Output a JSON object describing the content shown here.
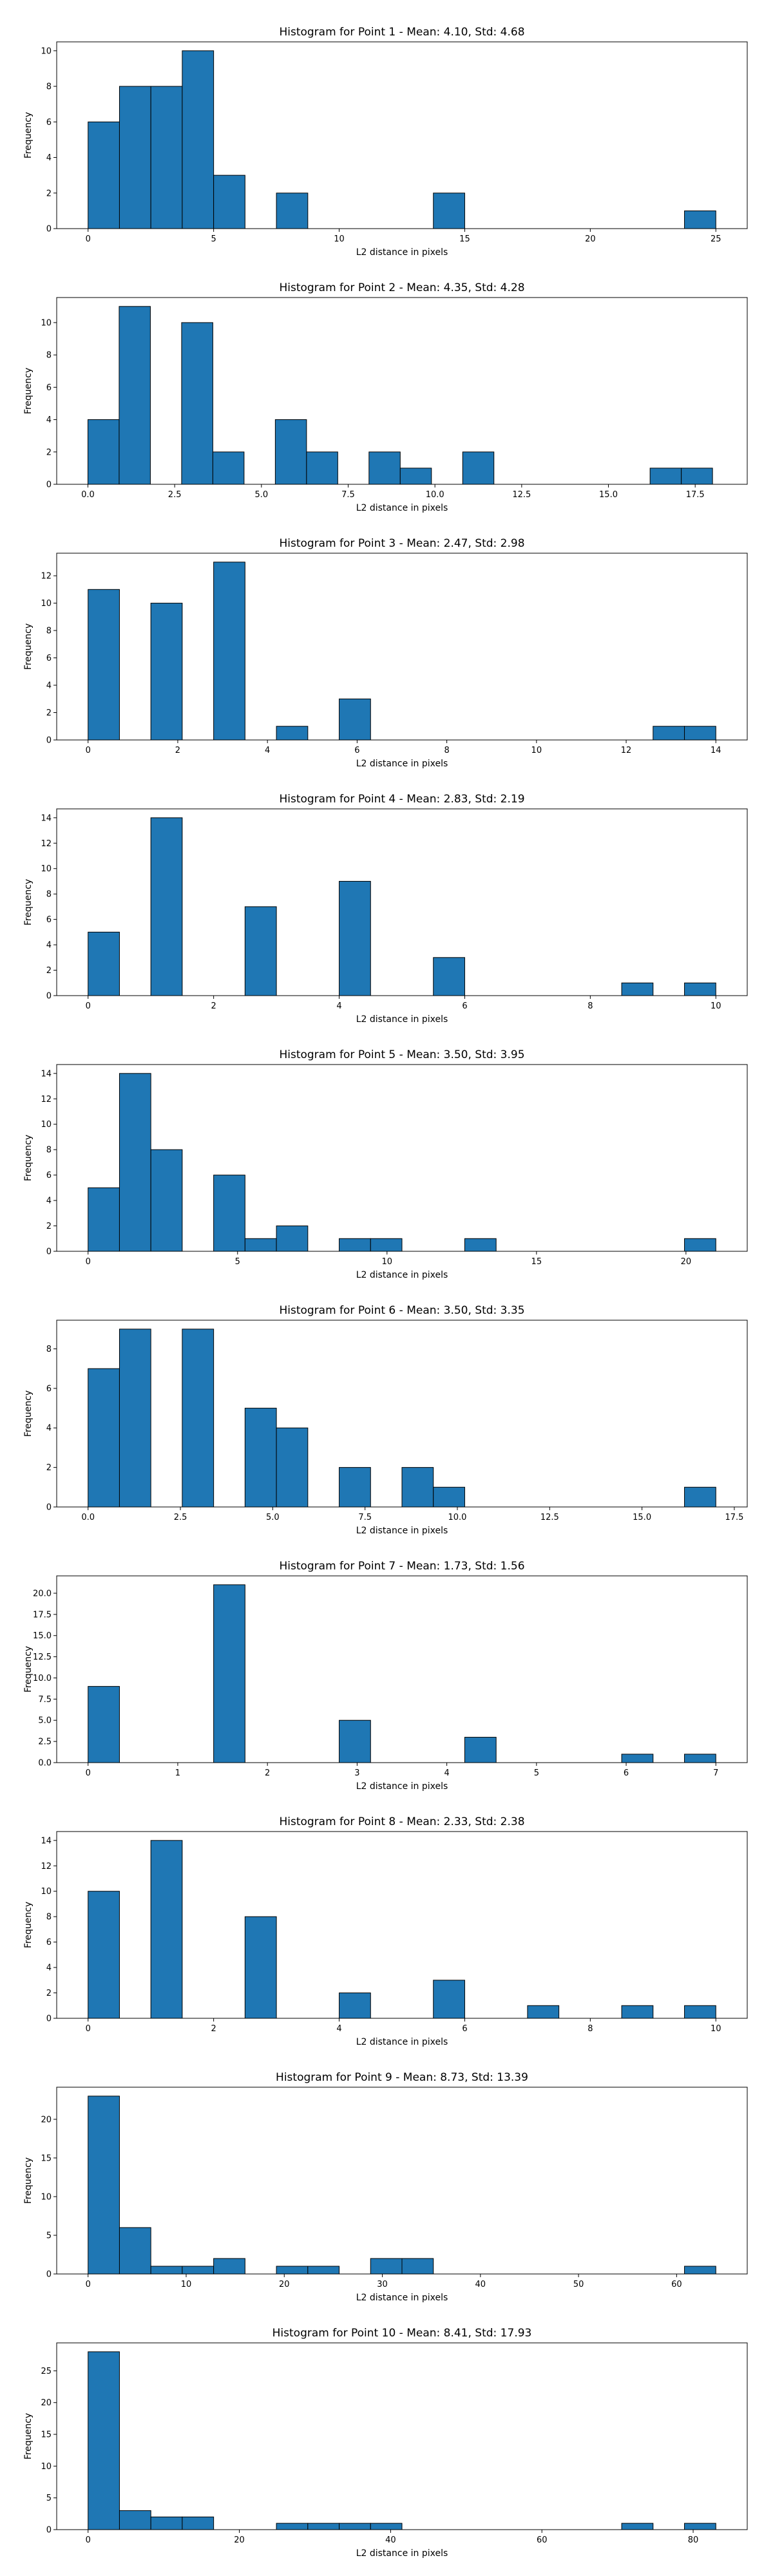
{
  "chart_data": [
    {
      "type": "bar",
      "title": "Histogram for Point 1 - Mean: 4.10, Std: 4.68",
      "xlabel": "L2 distance in pixels",
      "ylabel": "Frequency",
      "xlim": [
        -1.25,
        26.25
      ],
      "ylim": [
        0,
        10.5
      ],
      "xticks": [
        0,
        5,
        10,
        15,
        20,
        25
      ],
      "xtick_labels": [
        "0",
        "5",
        "10",
        "15",
        "20",
        "25"
      ],
      "yticks": [
        0,
        2,
        4,
        6,
        8,
        10
      ],
      "ytick_labels": [
        "0",
        "2",
        "4",
        "6",
        "8",
        "10"
      ],
      "bin_edges": [
        0.0,
        1.25,
        2.5,
        3.75,
        5.0,
        6.25,
        7.5,
        8.75,
        10.0,
        11.25,
        12.5,
        13.75,
        15.0,
        16.25,
        17.5,
        18.75,
        20.0,
        21.25,
        22.5,
        23.75,
        25.0
      ],
      "values": [
        6,
        8,
        8,
        10,
        3,
        0,
        2,
        0,
        0,
        0,
        0,
        2,
        0,
        0,
        0,
        0,
        0,
        0,
        0,
        1
      ]
    },
    {
      "type": "bar",
      "title": "Histogram for Point 2 - Mean: 4.35, Std: 4.28",
      "xlabel": "L2 distance in pixels",
      "ylabel": "Frequency",
      "xlim": [
        -0.9,
        19.0
      ],
      "ylim": [
        0,
        11.55
      ],
      "xticks": [
        0.0,
        2.5,
        5.0,
        7.5,
        10.0,
        12.5,
        15.0,
        17.5
      ],
      "xtick_labels": [
        "0.0",
        "2.5",
        "5.0",
        "7.5",
        "10.0",
        "12.5",
        "15.0",
        "17.5"
      ],
      "yticks": [
        0,
        2,
        4,
        6,
        8,
        10
      ],
      "ytick_labels": [
        "0",
        "2",
        "4",
        "6",
        "8",
        "10"
      ],
      "bin_edges": [
        0.0,
        0.9,
        1.8,
        2.7,
        3.6,
        4.5,
        5.4,
        6.3,
        7.2,
        8.1,
        9.0,
        9.9,
        10.8,
        11.7,
        12.6,
        13.5,
        14.4,
        15.3,
        16.2,
        17.1,
        18.0
      ],
      "values": [
        4,
        11,
        0,
        10,
        2,
        0,
        4,
        2,
        0,
        2,
        1,
        0,
        2,
        0,
        0,
        0,
        0,
        0,
        1,
        1
      ]
    },
    {
      "type": "bar",
      "title": "Histogram for Point 3 - Mean: 2.47, Std: 2.98",
      "xlabel": "L2 distance in pixels",
      "ylabel": "Frequency",
      "xlim": [
        -0.7,
        14.7
      ],
      "ylim": [
        0,
        13.65
      ],
      "xticks": [
        0,
        2,
        4,
        6,
        8,
        10,
        12,
        14
      ],
      "xtick_labels": [
        "0",
        "2",
        "4",
        "6",
        "8",
        "10",
        "12",
        "14"
      ],
      "yticks": [
        0,
        2,
        4,
        6,
        8,
        10,
        12
      ],
      "ytick_labels": [
        "0",
        "2",
        "4",
        "6",
        "8",
        "10",
        "12"
      ],
      "bin_edges": [
        0.0,
        0.7,
        1.4,
        2.1,
        2.8,
        3.5,
        4.2,
        4.9,
        5.6,
        6.3,
        7.0,
        7.7,
        8.4,
        9.1,
        9.8,
        10.5,
        11.2,
        11.9,
        12.6,
        13.3,
        14.0
      ],
      "values": [
        11,
        0,
        10,
        0,
        13,
        0,
        1,
        0,
        3,
        0,
        0,
        0,
        0,
        0,
        0,
        0,
        0,
        0,
        1,
        1
      ]
    },
    {
      "type": "bar",
      "title": "Histogram for Point 4 - Mean: 2.83, Std: 2.19",
      "xlabel": "L2 distance in pixels",
      "ylabel": "Frequency",
      "xlim": [
        -0.5,
        10.5
      ],
      "ylim": [
        0,
        14.7
      ],
      "xticks": [
        0,
        2,
        4,
        6,
        8,
        10
      ],
      "xtick_labels": [
        "0",
        "2",
        "4",
        "6",
        "8",
        "10"
      ],
      "yticks": [
        0,
        2,
        4,
        6,
        8,
        10,
        12,
        14
      ],
      "ytick_labels": [
        "0",
        "2",
        "4",
        "6",
        "8",
        "10",
        "12",
        "14"
      ],
      "bin_edges": [
        0.0,
        0.5,
        1.0,
        1.5,
        2.0,
        2.5,
        3.0,
        3.5,
        4.0,
        4.5,
        5.0,
        5.5,
        6.0,
        6.5,
        7.0,
        7.5,
        8.0,
        8.5,
        9.0,
        9.5,
        10.0
      ],
      "values": [
        5,
        0,
        14,
        0,
        0,
        7,
        0,
        0,
        9,
        0,
        0,
        3,
        0,
        0,
        0,
        0,
        0,
        1,
        0,
        1
      ]
    },
    {
      "type": "bar",
      "title": "Histogram for Point 5 - Mean: 3.50, Std: 3.95",
      "xlabel": "L2 distance in pixels",
      "ylabel": "Frequency",
      "xlim": [
        -1.05,
        22.05
      ],
      "ylim": [
        0,
        14.7
      ],
      "xticks": [
        0,
        5,
        10,
        15,
        20
      ],
      "xtick_labels": [
        "0",
        "5",
        "10",
        "15",
        "20"
      ],
      "yticks": [
        0,
        2,
        4,
        6,
        8,
        10,
        12,
        14
      ],
      "ytick_labels": [
        "0",
        "2",
        "4",
        "6",
        "8",
        "10",
        "12",
        "14"
      ],
      "bin_edges": [
        0.0,
        1.05,
        2.1,
        3.15,
        4.2,
        5.25,
        6.3,
        7.35,
        8.4,
        9.45,
        10.5,
        11.55,
        12.6,
        13.65,
        14.7,
        15.75,
        16.8,
        17.85,
        18.9,
        19.95,
        21.0
      ],
      "values": [
        5,
        14,
        8,
        0,
        6,
        1,
        2,
        0,
        1,
        1,
        0,
        0,
        1,
        0,
        0,
        0,
        0,
        0,
        0,
        1
      ]
    },
    {
      "type": "bar",
      "title": "Histogram for Point 6 - Mean: 3.50, Std: 3.35",
      "xlabel": "L2 distance in pixels",
      "ylabel": "Frequency",
      "xlim": [
        -0.85,
        17.85
      ],
      "ylim": [
        0,
        9.45
      ],
      "xticks": [
        0.0,
        2.5,
        5.0,
        7.5,
        10.0,
        12.5,
        15.0,
        17.5
      ],
      "xtick_labels": [
        "0.0",
        "2.5",
        "5.0",
        "7.5",
        "10.0",
        "12.5",
        "15.0",
        "17.5"
      ],
      "yticks": [
        0,
        2,
        4,
        6,
        8
      ],
      "ytick_labels": [
        "0",
        "2",
        "4",
        "6",
        "8"
      ],
      "bin_edges": [
        0.0,
        0.85,
        1.7,
        2.55,
        3.4,
        4.25,
        5.1,
        5.95,
        6.8,
        7.65,
        8.5,
        9.35,
        10.2,
        11.05,
        11.9,
        12.75,
        13.6,
        14.45,
        15.3,
        16.15,
        17.0
      ],
      "values": [
        7,
        9,
        0,
        9,
        0,
        5,
        4,
        0,
        2,
        0,
        2,
        1,
        0,
        0,
        0,
        0,
        0,
        0,
        0,
        1
      ]
    },
    {
      "type": "bar",
      "title": "Histogram for Point 7 - Mean: 1.73, Std: 1.56",
      "xlabel": "L2 distance in pixels",
      "ylabel": "Frequency",
      "xlim": [
        -0.35,
        7.35
      ],
      "ylim": [
        0,
        22.05
      ],
      "xticks": [
        0,
        1,
        2,
        3,
        4,
        5,
        6,
        7
      ],
      "xtick_labels": [
        "0",
        "1",
        "2",
        "3",
        "4",
        "5",
        "6",
        "7"
      ],
      "yticks": [
        0.0,
        2.5,
        5.0,
        7.5,
        10.0,
        12.5,
        15.0,
        17.5,
        20.0
      ],
      "ytick_labels": [
        "0.0",
        "2.5",
        "5.0",
        "7.5",
        "10.0",
        "12.5",
        "15.0",
        "17.5",
        "20.0"
      ],
      "bin_edges": [
        0.0,
        0.35,
        0.7,
        1.05,
        1.4,
        1.75,
        2.1,
        2.45,
        2.8,
        3.15,
        3.5,
        3.85,
        4.2,
        4.55,
        4.9,
        5.25,
        5.6,
        5.95,
        6.3,
        6.65,
        7.0
      ],
      "values": [
        9,
        0,
        0,
        0,
        21,
        0,
        0,
        0,
        5,
        0,
        0,
        0,
        3,
        0,
        0,
        0,
        0,
        1,
        0,
        1
      ]
    },
    {
      "type": "bar",
      "title": "Histogram for Point 8 - Mean: 2.33, Std: 2.38",
      "xlabel": "L2 distance in pixels",
      "ylabel": "Frequency",
      "xlim": [
        -0.5,
        10.5
      ],
      "ylim": [
        0,
        14.7
      ],
      "xticks": [
        0,
        2,
        4,
        6,
        8,
        10
      ],
      "xtick_labels": [
        "0",
        "2",
        "4",
        "6",
        "8",
        "10"
      ],
      "yticks": [
        0,
        2,
        4,
        6,
        8,
        10,
        12,
        14
      ],
      "ytick_labels": [
        "0",
        "2",
        "4",
        "6",
        "8",
        "10",
        "12",
        "14"
      ],
      "bin_edges": [
        0.0,
        0.5,
        1.0,
        1.5,
        2.0,
        2.5,
        3.0,
        3.5,
        4.0,
        4.5,
        5.0,
        5.5,
        6.0,
        6.5,
        7.0,
        7.5,
        8.0,
        8.5,
        9.0,
        9.5,
        10.0
      ],
      "values": [
        10,
        0,
        14,
        0,
        0,
        8,
        0,
        0,
        2,
        0,
        0,
        3,
        0,
        0,
        1,
        0,
        0,
        1,
        0,
        1
      ]
    },
    {
      "type": "bar",
      "title": "Histogram for Point 9 - Mean: 8.73, Std: 13.39",
      "xlabel": "L2 distance in pixels",
      "ylabel": "Frequency",
      "xlim": [
        -3.2,
        67.2
      ],
      "ylim": [
        0,
        24.15
      ],
      "xticks": [
        0,
        10,
        20,
        30,
        40,
        50,
        60
      ],
      "xtick_labels": [
        "0",
        "10",
        "20",
        "30",
        "40",
        "50",
        "60"
      ],
      "yticks": [
        0,
        5,
        10,
        15,
        20
      ],
      "ytick_labels": [
        "0",
        "5",
        "10",
        "15",
        "20"
      ],
      "bin_edges": [
        0.0,
        3.2,
        6.4,
        9.6,
        12.8,
        16.0,
        19.2,
        22.4,
        25.6,
        28.8,
        32.0,
        35.2,
        38.4,
        41.6,
        44.8,
        48.0,
        51.2,
        54.4,
        57.6,
        60.8,
        64.0
      ],
      "values": [
        23,
        6,
        1,
        1,
        2,
        0,
        1,
        1,
        0,
        2,
        2,
        0,
        0,
        0,
        0,
        0,
        0,
        0,
        0,
        1
      ]
    },
    {
      "type": "bar",
      "title": "Histogram for Point 10 - Mean: 8.41, Std: 17.93",
      "xlabel": "L2 distance in pixels",
      "ylabel": "Frequency",
      "xlim": [
        -4.15,
        87.15
      ],
      "ylim": [
        0,
        29.4
      ],
      "xticks": [
        0,
        20,
        40,
        60,
        80
      ],
      "xtick_labels": [
        "0",
        "20",
        "40",
        "60",
        "80"
      ],
      "yticks": [
        0,
        5,
        10,
        15,
        20,
        25
      ],
      "ytick_labels": [
        "0",
        "5",
        "10",
        "15",
        "20",
        "25"
      ],
      "bin_edges": [
        0.0,
        4.15,
        8.3,
        12.45,
        16.6,
        20.75,
        24.9,
        29.05,
        33.2,
        37.35,
        41.5,
        45.65,
        49.8,
        53.95,
        58.1,
        62.25,
        66.4,
        70.55,
        74.7,
        78.85,
        83.0
      ],
      "values": [
        28,
        3,
        2,
        2,
        0,
        0,
        1,
        1,
        1,
        1,
        0,
        0,
        0,
        0,
        0,
        0,
        0,
        1,
        0,
        1
      ]
    }
  ],
  "colors": {
    "bar_fill": "#1f77b4",
    "bar_edge": "#000000",
    "background": "#ffffff"
  }
}
